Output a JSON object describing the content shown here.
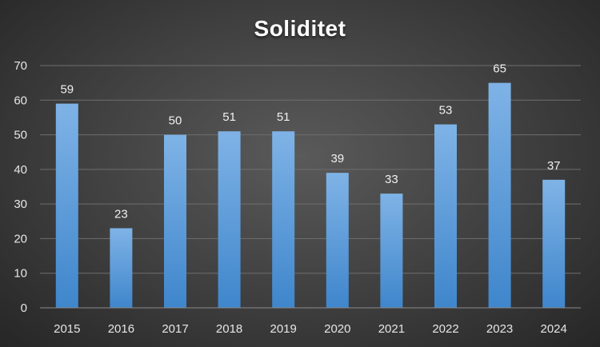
{
  "chart_data": {
    "type": "bar",
    "title": "Soliditet",
    "categories": [
      "2015",
      "2016",
      "2017",
      "2018",
      "2019",
      "2020",
      "2021",
      "2022",
      "2023",
      "2024"
    ],
    "values": [
      59,
      23,
      50,
      51,
      51,
      39,
      33,
      53,
      65,
      37
    ],
    "data_labels": [
      "59",
      "23",
      "50",
      "51",
      "51",
      "39",
      "33",
      "53",
      "65",
      "37"
    ],
    "ylim": [
      0,
      70
    ],
    "yticks": [
      0,
      10,
      20,
      30,
      40,
      50,
      60,
      70
    ],
    "grid": true,
    "legend": "none",
    "colors": {
      "bar_light": "#7fb3e6",
      "bar_dark": "#3f86cc",
      "grid": "#6e6e6e",
      "axis": "#8a8a8a"
    }
  }
}
